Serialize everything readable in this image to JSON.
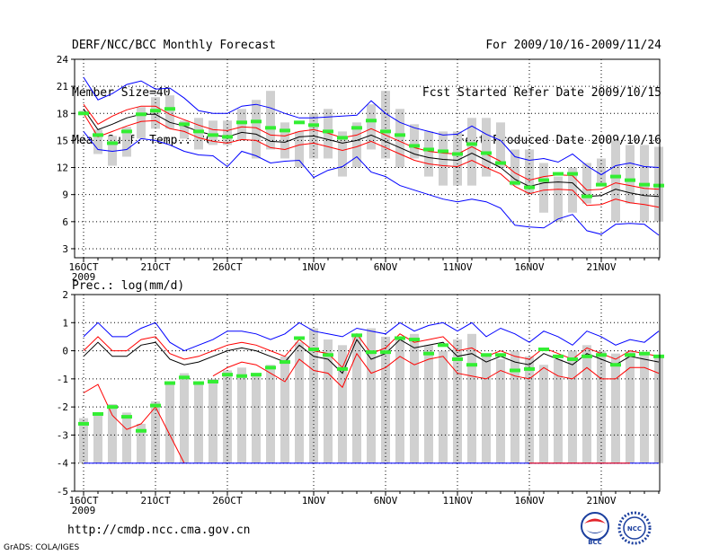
{
  "header": {
    "title": "DERF/NCC/BCC Monthly Forecast",
    "member_size": "Member Size=40",
    "variable": "Mean Surf. Temp.: °C",
    "forecast_range": "For 2009/10/16-2009/11/24",
    "start_date": "Fcst Started Refer Date 2009/10/15",
    "produced_date": "Fcst Produced Date 2009/10/16"
  },
  "footer": {
    "url": "http://cmdp.ncc.cma.gov.cn",
    "credit": "GrADS: COLA/IGES",
    "logo_bcc": "BCC",
    "logo_ncc": "NCC"
  },
  "colors": {
    "box": "#d0d0d0",
    "median": "#33ee33",
    "max": "#0000ff",
    "min": "#0000ff",
    "mean": "#000000",
    "spread": "#ff0000",
    "grid": "#000000"
  },
  "chart_data": [
    {
      "type": "box",
      "title": "Mean Surf. Temp.: °C",
      "ylim": [
        2,
        24
      ],
      "yticks": [
        3,
        6,
        9,
        12,
        15,
        18,
        21,
        24
      ],
      "x_ticks": [
        {
          "day": 0,
          "label": "16OCT",
          "label2": "2009"
        },
        {
          "day": 5,
          "label": "21OCT"
        },
        {
          "day": 10,
          "label": "26OCT"
        },
        {
          "day": 16,
          "label": "1NOV"
        },
        {
          "day": 21,
          "label": "6NOV"
        },
        {
          "day": 26,
          "label": "11NOV"
        },
        {
          "day": 31,
          "label": "16NOV"
        },
        {
          "day": 36,
          "label": "21NOV"
        }
      ],
      "days": 40,
      "box_low": [
        17.8,
        13.5,
        12.2,
        13.2,
        15.2,
        16.3,
        16.3,
        15.2,
        14,
        14.5,
        14.5,
        15,
        13,
        14,
        13,
        12,
        13,
        13,
        11,
        12,
        14,
        13,
        12,
        13,
        11,
        10,
        10,
        10,
        11,
        12,
        10,
        9,
        7,
        6,
        7,
        8,
        10,
        6,
        8,
        6,
        6
      ],
      "box_high": [
        18.3,
        16.2,
        15.5,
        16.5,
        18.7,
        19.8,
        20.0,
        17.2,
        17.5,
        17.2,
        17.2,
        18.5,
        19.5,
        20.5,
        17,
        16,
        18,
        18.5,
        16,
        17,
        19,
        20.5,
        18.5,
        16.8,
        16,
        16,
        16,
        17.5,
        17.5,
        17,
        14,
        14,
        12.5,
        11,
        12,
        12.5,
        13,
        15,
        14.5,
        14.5,
        14.3
      ],
      "median": [
        18.0,
        15.6,
        14.7,
        16.0,
        17.9,
        18.3,
        18.5,
        16.8,
        16.0,
        15.6,
        15.4,
        17.0,
        17.1,
        16.4,
        16.1,
        17.0,
        16.7,
        16.0,
        15.3,
        16.4,
        17.2,
        16.0,
        15.6,
        14.4,
        14.0,
        13.8,
        13.5,
        14.6,
        13.6,
        12.5,
        10.3,
        9.8,
        10.6,
        11.3,
        11.3,
        8.8,
        10.1,
        11.0,
        10.6,
        10.1,
        10.0
      ],
      "max": [
        22.0,
        19.5,
        20.2,
        21.2,
        21.6,
        20.7,
        20.8,
        19.7,
        18.3,
        18.0,
        18.0,
        18.8,
        19.0,
        18.6,
        18.0,
        17.5,
        17.5,
        17.6,
        17.7,
        17.8,
        19.4,
        18.0,
        17.0,
        16.4,
        16.0,
        15.6,
        15.7,
        16.6,
        15.7,
        15.0,
        13.2,
        12.8,
        13.0,
        12.6,
        13.5,
        12.2,
        11.2,
        12.2,
        12.5,
        12.1,
        12.0
      ],
      "min": [
        16.0,
        14.0,
        13.8,
        14.0,
        15.2,
        15.0,
        14.5,
        13.8,
        13.4,
        13.3,
        12.1,
        13.8,
        13.3,
        12.5,
        12.7,
        12.8,
        10.9,
        11.7,
        12.1,
        13.2,
        11.5,
        11.0,
        10.0,
        9.5,
        9.0,
        8.5,
        8.2,
        8.5,
        8.2,
        7.5,
        5.6,
        5.4,
        5.3,
        6.3,
        6.8,
        5.0,
        4.6,
        5.7,
        5.8,
        5.7,
        4.5
      ],
      "mean": [
        18.5,
        16.2,
        16.8,
        17.5,
        17.9,
        17.9,
        17.0,
        16.6,
        16.0,
        15.6,
        15.4,
        15.9,
        15.7,
        14.9,
        14.8,
        15.4,
        15.5,
        15.1,
        14.7,
        15.0,
        15.6,
        14.9,
        14.2,
        13.5,
        13.1,
        12.9,
        12.8,
        13.6,
        12.8,
        12.0,
        10.7,
        9.9,
        10.3,
        10.4,
        10.3,
        8.8,
        8.9,
        9.6,
        9.2,
        8.9,
        8.8
      ],
      "upper": [
        19.0,
        16.8,
        17.7,
        18.4,
        18.8,
        18.8,
        17.9,
        17.3,
        16.7,
        16.2,
        16.1,
        16.5,
        16.4,
        15.6,
        15.5,
        16.0,
        16.2,
        15.8,
        15.3,
        15.6,
        16.3,
        15.6,
        14.9,
        14.2,
        13.8,
        13.6,
        13.5,
        14.3,
        13.5,
        12.7,
        11.4,
        10.6,
        11.0,
        11.2,
        11.1,
        9.5,
        9.6,
        10.3,
        10.0,
        9.7,
        9.6
      ],
      "lower": [
        18.0,
        15.4,
        16.0,
        16.6,
        17.1,
        17.2,
        16.3,
        16.0,
        15.3,
        14.9,
        14.7,
        15.1,
        15.0,
        14.2,
        14.0,
        14.5,
        14.7,
        14.3,
        13.9,
        14.3,
        14.9,
        14.2,
        13.5,
        12.8,
        12.4,
        12.2,
        12.1,
        12.8,
        12.0,
        11.3,
        9.9,
        9.1,
        9.5,
        9.6,
        9.5,
        7.8,
        7.9,
        8.5,
        8.1,
        7.9,
        7.6
      ]
    },
    {
      "type": "box",
      "title": "Prec.: log(mm/d)",
      "ylim": [
        -5,
        2
      ],
      "yticks": [
        -5,
        -4,
        -3,
        -2,
        -1,
        0,
        1,
        2
      ],
      "x_ticks": [
        {
          "day": 0,
          "label": "16OCT",
          "label2": "2009"
        },
        {
          "day": 5,
          "label": "21OCT"
        },
        {
          "day": 10,
          "label": "26OCT"
        },
        {
          "day": 16,
          "label": "1NOV"
        },
        {
          "day": 21,
          "label": "6NOV"
        },
        {
          "day": 26,
          "label": "11NOV"
        },
        {
          "day": 31,
          "label": "16NOV"
        },
        {
          "day": 36,
          "label": "21NOV"
        }
      ],
      "days": 40,
      "box_low": [
        -4,
        -4,
        -4,
        -4,
        -4,
        -4,
        -4,
        -4,
        -4,
        -4,
        -4,
        -4,
        -4,
        -4,
        -4,
        -4,
        -4,
        -4,
        -4,
        -4,
        -4,
        -4,
        -4,
        -4,
        -4,
        -4,
        -4,
        -4,
        -4,
        -4,
        -4,
        -4,
        -4,
        -4,
        -4,
        -4,
        -4,
        -4,
        -4,
        -4,
        -4
      ],
      "box_high": [
        -2.4,
        -2.2,
        -1.9,
        -2.2,
        -2.6,
        -1.8,
        -1.2,
        -0.8,
        -1.1,
        -1.0,
        -0.7,
        -0.6,
        -0.8,
        -0.5,
        -0.2,
        0.3,
        0.8,
        0.4,
        0.2,
        0.6,
        0.8,
        0.5,
        0.5,
        0.6,
        0.2,
        0.0,
        0.4,
        0.6,
        -0.2,
        -0.3,
        0.0,
        -0.2,
        -0.5,
        -0.3,
        0.0,
        0.2,
        0.0,
        -0.1,
        0.0,
        -0.1,
        -0.2
      ],
      "median": [
        -2.6,
        -2.25,
        -2.0,
        -2.35,
        -2.85,
        -1.95,
        -1.15,
        -0.95,
        -1.15,
        -1.1,
        -0.85,
        -0.9,
        -0.85,
        -0.6,
        -0.4,
        0.45,
        0.05,
        -0.15,
        -0.65,
        0.55,
        -0.05,
        -0.05,
        0.45,
        0.4,
        -0.1,
        0.2,
        -0.3,
        -0.5,
        -0.15,
        -0.15,
        -0.7,
        -0.65,
        0.05,
        -0.2,
        -0.3,
        -0.2,
        -0.15,
        -0.5,
        -0.15,
        -0.1,
        -0.2
      ],
      "max": [
        0.5,
        1.0,
        0.5,
        0.5,
        0.8,
        1.0,
        0.3,
        0.0,
        0.2,
        0.4,
        0.7,
        0.7,
        0.6,
        0.4,
        0.6,
        1.0,
        0.7,
        0.6,
        0.5,
        0.8,
        0.7,
        0.6,
        1.0,
        0.7,
        0.9,
        1.0,
        0.7,
        1.0,
        0.5,
        0.8,
        0.6,
        0.3,
        0.7,
        0.5,
        0.2,
        0.7,
        0.5,
        0.2,
        0.4,
        0.3,
        0.7
      ],
      "mean": [
        -0.2,
        0.3,
        -0.2,
        -0.2,
        0.2,
        0.3,
        -0.3,
        -0.5,
        -0.4,
        -0.2,
        0.0,
        0.1,
        0.0,
        -0.2,
        -0.4,
        0.2,
        -0.2,
        -0.3,
        -0.8,
        0.4,
        -0.3,
        -0.1,
        0.4,
        0.1,
        0.2,
        0.3,
        -0.2,
        -0.1,
        -0.4,
        -0.2,
        -0.4,
        -0.5,
        -0.1,
        -0.3,
        -0.5,
        -0.1,
        -0.3,
        -0.5,
        -0.2,
        -0.3,
        -0.4
      ],
      "upper": [
        0.0,
        0.5,
        0.0,
        0.0,
        0.4,
        0.5,
        -0.1,
        -0.3,
        -0.2,
        0.0,
        0.2,
        0.3,
        0.2,
        0.0,
        -0.2,
        0.4,
        0.0,
        -0.1,
        -0.6,
        0.6,
        -0.1,
        0.1,
        0.6,
        0.3,
        0.4,
        0.5,
        0.0,
        0.1,
        -0.2,
        0.0,
        -0.2,
        -0.3,
        0.1,
        -0.1,
        -0.3,
        0.1,
        -0.1,
        -0.3,
        0.0,
        -0.1,
        -0.2
      ],
      "lower": [
        -1.5,
        -1.2,
        -2.3,
        -2.8,
        -2.6,
        -2.0,
        -3.0,
        -4.0,
        null,
        -0.9,
        -0.6,
        -0.4,
        -0.5,
        -0.8,
        -1.1,
        -0.3,
        -0.7,
        -0.8,
        -1.3,
        -0.1,
        -0.8,
        -0.6,
        -0.2,
        -0.5,
        -0.3,
        -0.2,
        -0.8,
        -0.9,
        -1.0,
        -0.7,
        -0.9,
        -1.0,
        -0.6,
        -0.9,
        -1.0,
        -0.6,
        -1.0,
        -1.0,
        -0.6,
        -0.6,
        -0.8
      ]
    }
  ]
}
